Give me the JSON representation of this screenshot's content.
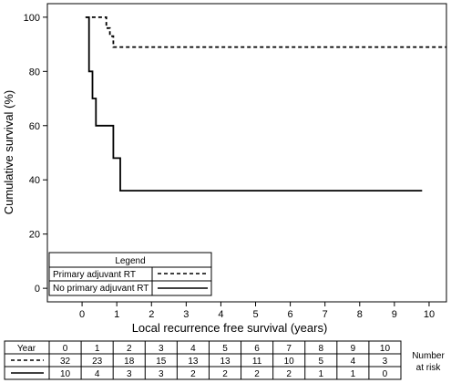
{
  "chart_data": {
    "type": "line",
    "title": "",
    "xlabel": "Local recurrence free survival (years)",
    "ylabel": "Cumulative survival (%)",
    "xlim": [
      -1,
      10.5
    ],
    "ylim": [
      -5,
      105
    ],
    "x_ticks": [
      0,
      1,
      2,
      3,
      4,
      5,
      6,
      7,
      8,
      9,
      10
    ],
    "y_ticks": [
      0,
      20,
      40,
      60,
      80,
      100
    ],
    "grid": false,
    "step": true,
    "legend": {
      "title": "Legend",
      "position": "bottom-left",
      "entries": [
        "Primary adjuvant RT",
        "No primary adjuvant RT"
      ]
    },
    "series": [
      {
        "name": "Primary adjuvant RT",
        "line_style": "dashed",
        "points": [
          [
            0.1,
            100
          ],
          [
            0.7,
            100
          ],
          [
            0.7,
            96
          ],
          [
            0.8,
            96
          ],
          [
            0.8,
            93
          ],
          [
            0.9,
            93
          ],
          [
            0.9,
            89
          ],
          [
            10.5,
            89
          ]
        ]
      },
      {
        "name": "No primary adjuvant RT",
        "line_style": "solid",
        "points": [
          [
            0.1,
            100
          ],
          [
            0.2,
            100
          ],
          [
            0.2,
            80
          ],
          [
            0.3,
            80
          ],
          [
            0.3,
            70
          ],
          [
            0.4,
            70
          ],
          [
            0.4,
            60
          ],
          [
            0.9,
            60
          ],
          [
            0.9,
            48
          ],
          [
            1.1,
            48
          ],
          [
            1.1,
            36
          ],
          [
            9.8,
            36
          ]
        ]
      }
    ],
    "risk_table": {
      "header_label": "Year",
      "side_label_line1": "Number",
      "side_label_line2": "at risk",
      "years": [
        "0",
        "1",
        "2",
        "3",
        "4",
        "5",
        "6",
        "7",
        "8",
        "9",
        "10"
      ],
      "rows": [
        {
          "line_style": "dashed",
          "values": [
            "32",
            "23",
            "18",
            "15",
            "13",
            "13",
            "11",
            "10",
            "5",
            "4",
            "3"
          ]
        },
        {
          "line_style": "solid",
          "values": [
            "10",
            "4",
            "3",
            "3",
            "2",
            "2",
            "2",
            "2",
            "1",
            "1",
            "0"
          ]
        }
      ]
    }
  }
}
